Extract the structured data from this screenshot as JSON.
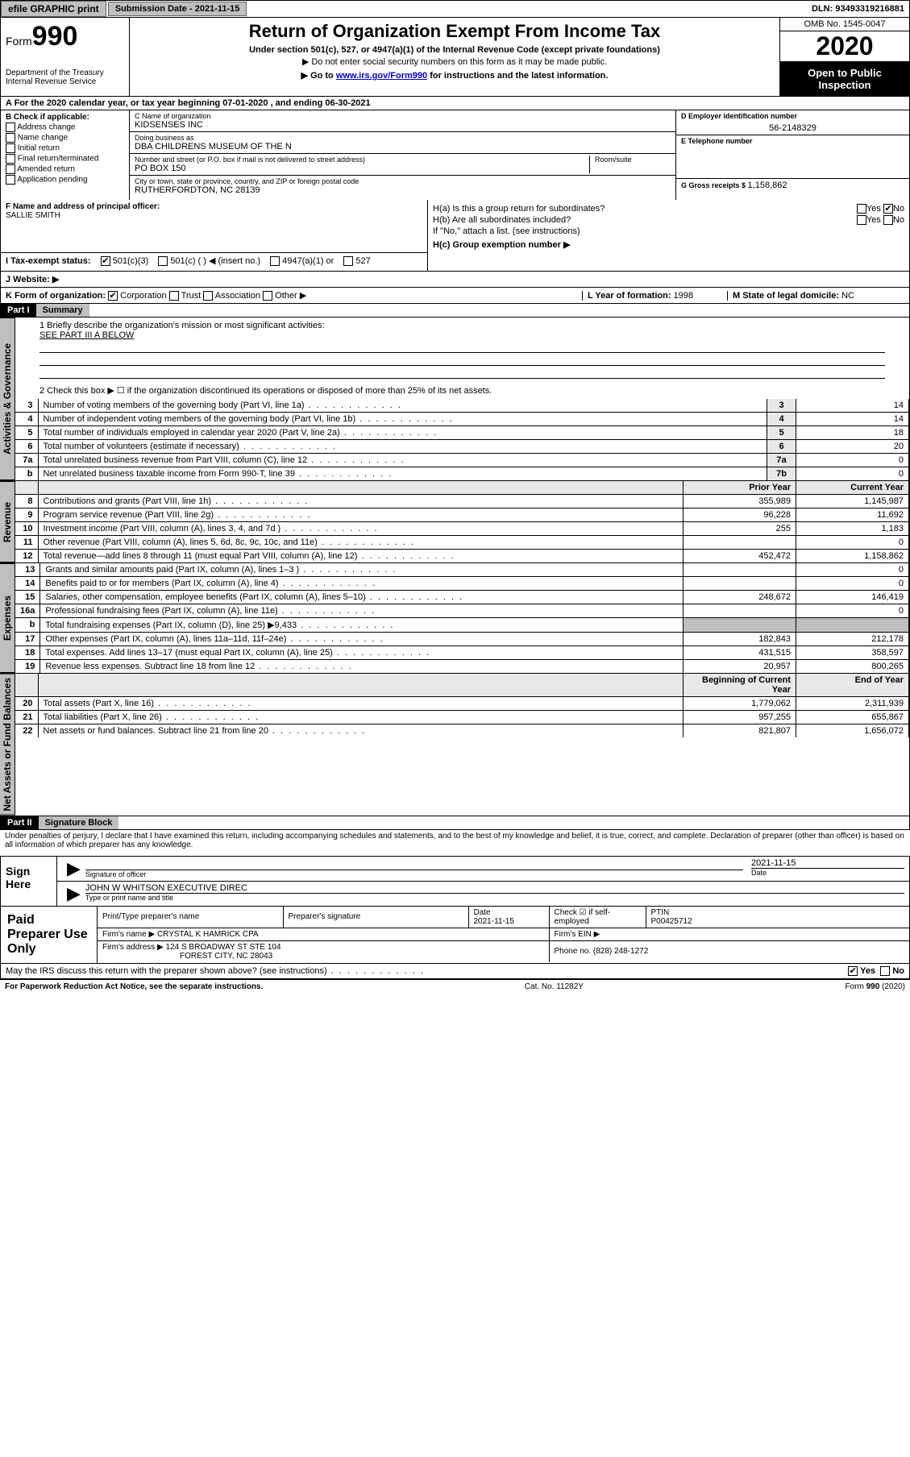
{
  "topbar": {
    "efile": "efile GRAPHIC print",
    "submission_label": "Submission Date - 2021-11-15",
    "dln_label": "DLN: 93493319216881"
  },
  "header": {
    "form_prefix": "Form",
    "form_number": "990",
    "dept": "Department of the Treasury",
    "irs": "Internal Revenue Service",
    "title": "Return of Organization Exempt From Income Tax",
    "sub1": "Under section 501(c), 527, or 4947(a)(1) of the Internal Revenue Code (except private foundations)",
    "sub2": "▶ Do not enter social security numbers on this form as it may be made public.",
    "sub3_pre": "▶ Go to ",
    "sub3_link": "www.irs.gov/Form990",
    "sub3_post": " for instructions and the latest information.",
    "omb": "OMB No. 1545-0047",
    "year": "2020",
    "otp": "Open to Public Inspection"
  },
  "row_a": "A For the 2020 calendar year, or tax year beginning 07-01-2020   , and ending 06-30-2021",
  "box_b": {
    "title": "B Check if applicable:",
    "opts": [
      "Address change",
      "Name change",
      "Initial return",
      "Final return/terminated",
      "Amended return",
      "Application pending"
    ]
  },
  "box_c": {
    "name_lbl": "C Name of organization",
    "name": "KIDSENSES INC",
    "dba_lbl": "Doing business as",
    "dba": "DBA CHILDRENS MUSEUM OF THE N",
    "street_lbl": "Number and street (or P.O. box if mail is not delivered to street address)",
    "street": "PO BOX 150",
    "room_lbl": "Room/suite",
    "city_lbl": "City or town, state or province, country, and ZIP or foreign postal code",
    "city": "RUTHERFORDTON, NC  28139"
  },
  "box_d": {
    "lbl": "D Employer identification number",
    "val": "56-2148329"
  },
  "box_e": {
    "lbl": "E Telephone number",
    "val": ""
  },
  "box_g": {
    "lbl": "G Gross receipts $ ",
    "val": "1,158,862"
  },
  "box_f": {
    "lbl": "F Name and address of principal officer:",
    "name": "SALLIE SMITH"
  },
  "box_h": {
    "a_lbl": "H(a)  Is this a group return for subordinates?",
    "b_lbl": "H(b)  Are all subordinates included?",
    "b_note": "If \"No,\" attach a list. (see instructions)",
    "c_lbl": "H(c)  Group exemption number ▶",
    "yes": "Yes",
    "no": "No"
  },
  "row_i": {
    "lbl": "I   Tax-exempt status:",
    "o1": "501(c)(3)",
    "o2": "501(c) (  ) ◀ (insert no.)",
    "o3": "4947(a)(1) or",
    "o4": "527"
  },
  "row_j": {
    "lbl": "J   Website: ▶"
  },
  "row_k": {
    "lbl": "K Form of organization:",
    "o1": "Corporation",
    "o2": "Trust",
    "o3": "Association",
    "o4": "Other ▶",
    "l_lbl": "L Year of formation: ",
    "l_val": "1998",
    "m_lbl": "M State of legal domicile: ",
    "m_val": "NC"
  },
  "part1": {
    "tag": "Part I",
    "title": "Summary",
    "q1": "1   Briefly describe the organization's mission or most significant activities:",
    "q1_val": "SEE PART III A BELOW",
    "q2": "2   Check this box ▶ ☐  if the organization discontinued its operations or disposed of more than 25% of its net assets.",
    "vtab_gov": "Activities & Governance",
    "vtab_rev": "Revenue",
    "vtab_exp": "Expenses",
    "vtab_net": "Net Assets or Fund Balances",
    "rows_gov": [
      {
        "n": "3",
        "d": "Number of voting members of the governing body (Part VI, line 1a)",
        "b": "3",
        "v": "14"
      },
      {
        "n": "4",
        "d": "Number of independent voting members of the governing body (Part VI, line 1b)",
        "b": "4",
        "v": "14"
      },
      {
        "n": "5",
        "d": "Total number of individuals employed in calendar year 2020 (Part V, line 2a)",
        "b": "5",
        "v": "18"
      },
      {
        "n": "6",
        "d": "Total number of volunteers (estimate if necessary)",
        "b": "6",
        "v": "20"
      },
      {
        "n": "7a",
        "d": "Total unrelated business revenue from Part VIII, column (C), line 12",
        "b": "7a",
        "v": "0"
      },
      {
        "n": "b",
        "d": "Net unrelated business taxable income from Form 990-T, line 39",
        "b": "7b",
        "v": "0"
      }
    ],
    "hdr_prior": "Prior Year",
    "hdr_curr": "Current Year",
    "rows_rev": [
      {
        "n": "8",
        "d": "Contributions and grants (Part VIII, line 1h)",
        "p": "355,989",
        "c": "1,145,987"
      },
      {
        "n": "9",
        "d": "Program service revenue (Part VIII, line 2g)",
        "p": "96,228",
        "c": "11,692"
      },
      {
        "n": "10",
        "d": "Investment income (Part VIII, column (A), lines 3, 4, and 7d )",
        "p": "255",
        "c": "1,183"
      },
      {
        "n": "11",
        "d": "Other revenue (Part VIII, column (A), lines 5, 6d, 8c, 9c, 10c, and 11e)",
        "p": "",
        "c": "0"
      },
      {
        "n": "12",
        "d": "Total revenue—add lines 8 through 11 (must equal Part VIII, column (A), line 12)",
        "p": "452,472",
        "c": "1,158,862"
      }
    ],
    "rows_exp": [
      {
        "n": "13",
        "d": "Grants and similar amounts paid (Part IX, column (A), lines 1–3 )",
        "p": "",
        "c": "0"
      },
      {
        "n": "14",
        "d": "Benefits paid to or for members (Part IX, column (A), line 4)",
        "p": "",
        "c": "0"
      },
      {
        "n": "15",
        "d": "Salaries, other compensation, employee benefits (Part IX, column (A), lines 5–10)",
        "p": "248,672",
        "c": "146,419"
      },
      {
        "n": "16a",
        "d": "Professional fundraising fees (Part IX, column (A), line 11e)",
        "p": "",
        "c": "0"
      },
      {
        "n": "b",
        "d": "Total fundraising expenses (Part IX, column (D), line 25) ▶9,433",
        "p": "—shade—",
        "c": "—shade—"
      },
      {
        "n": "17",
        "d": "Other expenses (Part IX, column (A), lines 11a–11d, 11f–24e)",
        "p": "182,843",
        "c": "212,178"
      },
      {
        "n": "18",
        "d": "Total expenses. Add lines 13–17 (must equal Part IX, column (A), line 25)",
        "p": "431,515",
        "c": "358,597"
      },
      {
        "n": "19",
        "d": "Revenue less expenses. Subtract line 18 from line 12",
        "p": "20,957",
        "c": "800,265"
      }
    ],
    "hdr_beg": "Beginning of Current Year",
    "hdr_end": "End of Year",
    "rows_net": [
      {
        "n": "20",
        "d": "Total assets (Part X, line 16)",
        "p": "1,779,062",
        "c": "2,311,939"
      },
      {
        "n": "21",
        "d": "Total liabilities (Part X, line 26)",
        "p": "957,255",
        "c": "655,867"
      },
      {
        "n": "22",
        "d": "Net assets or fund balances. Subtract line 21 from line 20",
        "p": "821,807",
        "c": "1,656,072"
      }
    ]
  },
  "part2": {
    "tag": "Part II",
    "title": "Signature Block",
    "decl": "Under penalties of perjury, I declare that I have examined this return, including accompanying schedules and statements, and to the best of my knowledge and belief, it is true, correct, and complete. Declaration of preparer (other than officer) is based on all information of which preparer has any knowledge."
  },
  "sign": {
    "here": "Sign Here",
    "sig_officer": "Signature of officer",
    "date_lbl": "Date",
    "date": "2021-11-15",
    "name": "JOHN W WHITSON  EXECUTIVE DIREC",
    "type_name": "Type or print name and title"
  },
  "paid": {
    "title": "Paid Preparer Use Only",
    "h_name": "Print/Type preparer's name",
    "h_sig": "Preparer's signature",
    "h_date": "Date",
    "date": "2021-11-15",
    "h_check": "Check ☑ if self-employed",
    "h_ptin": "PTIN",
    "ptin": "P00425712",
    "firm_lbl": "Firm's name    ▶",
    "firm": "CRYSTAL K HAMRICK CPA",
    "ein_lbl": "Firm's EIN ▶",
    "addr_lbl": "Firm's address ▶",
    "addr1": "124 S BROADWAY ST STE 104",
    "addr2": "FOREST CITY, NC  28043",
    "phone_lbl": "Phone no. ",
    "phone": "(828) 248-1272"
  },
  "disc": {
    "q": "May the IRS discuss this return with the preparer shown above? (see instructions)",
    "yes": "Yes",
    "no": "No"
  },
  "footer": {
    "l": "For Paperwork Reduction Act Notice, see the separate instructions.",
    "m": "Cat. No. 11282Y",
    "r": "Form 990 (2020)"
  },
  "colors": {
    "shade": "#bfbfbf",
    "lightshade": "#e8e8e8"
  }
}
